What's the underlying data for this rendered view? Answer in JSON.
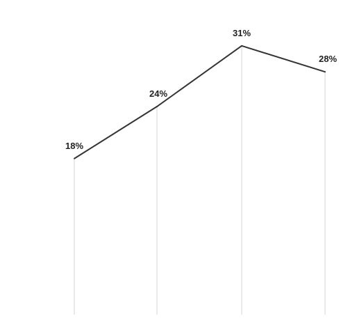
{
  "chart_data": {
    "type": "line",
    "categories": [
      "",
      "",
      "",
      ""
    ],
    "series": [
      {
        "values": [
          18,
          24,
          31,
          28
        ],
        "labels": [
          "18%",
          "24%",
          "31%",
          "28%"
        ]
      }
    ],
    "ylim": [
      0,
      35
    ],
    "yticks": [
      0,
      5,
      10,
      15,
      20,
      25,
      30,
      35
    ],
    "ytick_labels": [
      "",
      "",
      "",
      "",
      "",
      "",
      "",
      ""
    ],
    "drop_lines": true,
    "grid": false,
    "legend": "none",
    "colors": {
      "line": "#333333",
      "drop_line": "#d4d4d4",
      "data_label": "#222222",
      "axis_text": "#c8c8c8"
    }
  }
}
